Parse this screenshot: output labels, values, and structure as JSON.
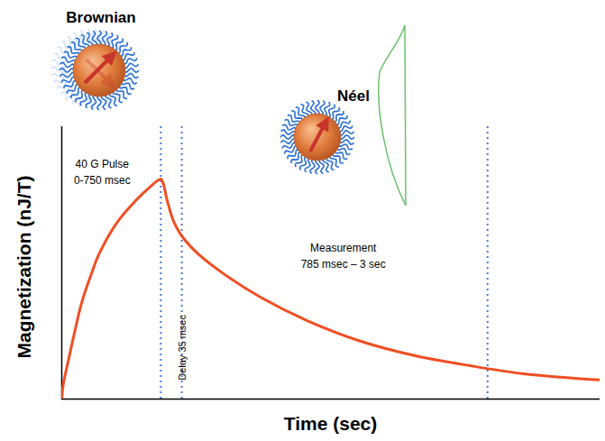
{
  "chart_data": {
    "type": "line",
    "x_label": "Time (sec)",
    "y_label": "Magnetization (nJ/T)",
    "x": [
      0,
      0.3,
      1.2,
      2.3,
      3.7,
      5.4,
      7.0,
      10.4,
      13.7,
      16.2,
      18.4,
      18.8,
      19.6,
      20.8,
      22.4,
      25.5,
      30.5,
      37.2,
      45.6,
      55.6,
      65.7,
      75.7,
      85.8,
      100
    ],
    "values": [
      0,
      5.6,
      13.9,
      23.8,
      35.4,
      45.4,
      53.6,
      65.2,
      72.8,
      77.5,
      80.8,
      79.5,
      72.8,
      65.2,
      59.6,
      53.0,
      45.4,
      37.1,
      28.8,
      21.2,
      15.9,
      12.3,
      9.3,
      7.0
    ],
    "color": "#f04e23",
    "xlim": [
      0,
      100
    ],
    "ylim": [
      0,
      100
    ],
    "xticks": [],
    "yticks": [],
    "tick_labels": false,
    "grid": false,
    "vlines": {
      "x": [
        18.4,
        22.3,
        79.1
      ],
      "color": "#4a78d6",
      "line_style": "dotted"
    },
    "annotations": [
      {
        "text": "40 G Pulse\n0-750 msec",
        "x": 7.5,
        "y": 89.4
      },
      {
        "text": "Delay 35 msec",
        "x": 20.4,
        "y": 18.9,
        "orientation": "vertical"
      },
      {
        "text": "Measurement\n785 msec – 3 sec",
        "x": 52.3,
        "y": 58.6
      }
    ],
    "illustrations": [
      "Brownian",
      "Néel"
    ]
  }
}
